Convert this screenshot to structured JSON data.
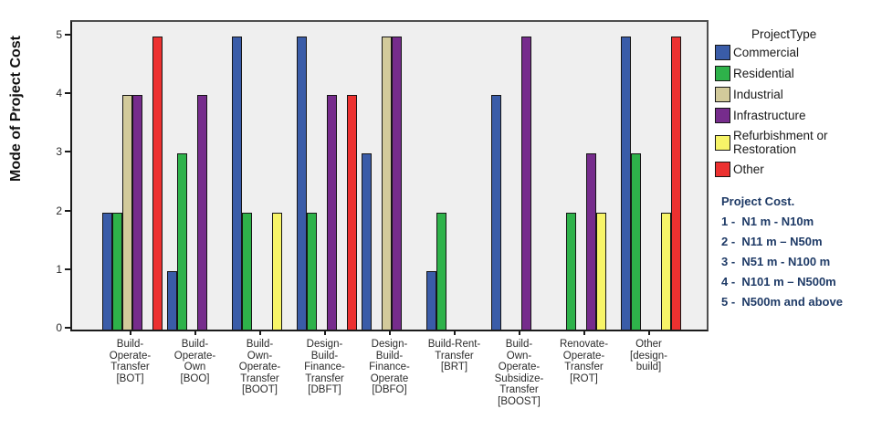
{
  "chart_data": {
    "type": "grouped-bar",
    "ylabel": "Mode of Project Cost",
    "ylim": [
      0,
      5
    ],
    "yticks": [
      "0",
      "1",
      "2",
      "3",
      "4",
      "5"
    ],
    "grid": false,
    "plot_background": "#efefef",
    "legend": {
      "title": "ProjectType",
      "position": "right"
    },
    "series": [
      {
        "name": "Commercial",
        "color": "#3a5ca8"
      },
      {
        "name": "Residential",
        "color": "#2eb24a"
      },
      {
        "name": "Industrial",
        "color": "#d2ca9b"
      },
      {
        "name": "Infrastructure",
        "color": "#762c8c"
      },
      {
        "name": "Refurbishment or Restoration",
        "color": "#f7f468"
      },
      {
        "name": "Other",
        "color": "#ec3130"
      }
    ],
    "categories": [
      {
        "label_lines": [
          "Build-",
          "Operate-",
          "Transfer",
          "[BOT]"
        ],
        "values": [
          2,
          2,
          4,
          4,
          null,
          5
        ]
      },
      {
        "label_lines": [
          "Build-",
          "Operate-",
          "Own",
          "[BOO]"
        ],
        "values": [
          1,
          3,
          null,
          4,
          null,
          null
        ]
      },
      {
        "label_lines": [
          "Build-",
          "Own-",
          "Operate-",
          "Transfer",
          "[BOOT]"
        ],
        "values": [
          5,
          2,
          null,
          null,
          2,
          null
        ]
      },
      {
        "label_lines": [
          "Design-",
          "Build-",
          "Finance-",
          "Transfer",
          "[DBFT]"
        ],
        "values": [
          5,
          2,
          null,
          4,
          null,
          4
        ]
      },
      {
        "label_lines": [
          "Design-",
          "Build-",
          "Finance-",
          "Operate",
          "[DBFO]"
        ],
        "values": [
          3,
          null,
          5,
          5,
          null,
          null
        ]
      },
      {
        "label_lines": [
          "Build-Rent-",
          "Transfer",
          "[BRT]"
        ],
        "values": [
          1,
          2,
          null,
          null,
          null,
          null
        ]
      },
      {
        "label_lines": [
          "Build-",
          "Own-",
          "Operate-",
          "Subsidize-",
          "Transfer",
          "[BOOST]"
        ],
        "values": [
          4,
          null,
          null,
          5,
          null,
          null
        ]
      },
      {
        "label_lines": [
          "Renovate-",
          "Operate-",
          "Transfer",
          "[ROT]"
        ],
        "values": [
          null,
          2,
          null,
          3,
          2,
          null
        ]
      },
      {
        "label_lines": [
          "Other",
          "[design-",
          "build]"
        ],
        "values": [
          5,
          3,
          null,
          null,
          2,
          5
        ]
      }
    ],
    "note": {
      "title": "Project Cost.",
      "lines": [
        "1 -  N1 m - N10m",
        "2 -  N11 m – N50m",
        "3 -  N51 m - N100 m",
        "4 -  N101 m – N500m",
        "5 -  N500m and above"
      ]
    }
  }
}
